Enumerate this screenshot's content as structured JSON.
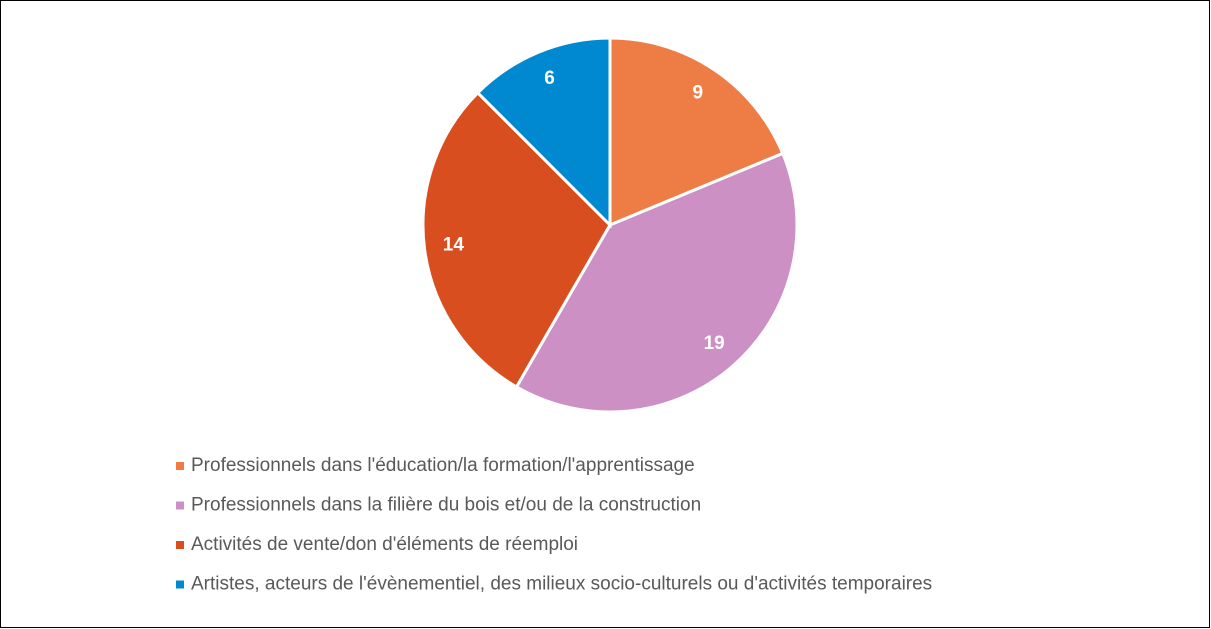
{
  "chart_data": {
    "type": "pie",
    "categories": [
      "Professionnels dans l'éducation/la formation/l'apprentissage",
      "Professionnels dans la filière du bois et/ou de la construction",
      "Activités de vente/don d'éléments de réemploi",
      "Artistes, acteurs de l'évènementiel, des milieux socio-culturels ou d'activités temporaires"
    ],
    "values": [
      9,
      19,
      14,
      6
    ],
    "colors": [
      "#ED7D45",
      "#CC90C4",
      "#D94E1F",
      "#0088D1"
    ],
    "legend": "bottom"
  }
}
